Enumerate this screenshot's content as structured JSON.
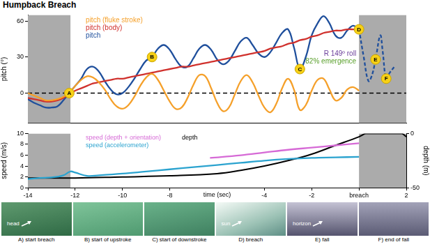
{
  "chart_data": [
    {
      "type": "line",
      "title": "Humpback Breach",
      "ylabel": "pitch (°)",
      "xlim": [
        -14,
        2
      ],
      "ylim": [
        -25,
        65
      ],
      "yticks": [
        0,
        30,
        60
      ],
      "tick_labels": "y",
      "grid": false,
      "shaded_regions": [
        [
          -14,
          -12.2
        ],
        [
          0,
          2
        ]
      ],
      "reference_line": 0,
      "x": [
        -14,
        -13.75,
        -13.5,
        -13.25,
        -13,
        -12.75,
        -12.5,
        -12.25,
        -12,
        -11.75,
        -11.5,
        -11.25,
        -11,
        -10.75,
        -10.5,
        -10.25,
        -10,
        -9.75,
        -9.5,
        -9.25,
        -9,
        -8.75,
        -8.5,
        -8.25,
        -8,
        -7.75,
        -7.5,
        -7.25,
        -7,
        -6.75,
        -6.5,
        -6.25,
        -6,
        -5.75,
        -5.5,
        -5.25,
        -5,
        -4.75,
        -4.5,
        -4.25,
        -4,
        -3.75,
        -3.5,
        -3.25,
        -3,
        -2.75,
        -2.5,
        -2.25,
        -2,
        -1.75,
        -1.5,
        -1.25,
        -1,
        -0.75,
        -0.5,
        -0.25,
        0
      ],
      "series": [
        {
          "name": "pitch (fluke stroke)",
          "color": "#f5a02a",
          "values": [
            0,
            -2,
            -4,
            -6,
            -6,
            -5,
            -3,
            0,
            6,
            11,
            14,
            13,
            9,
            3,
            -5,
            -11,
            -13,
            -10,
            -3,
            6,
            13,
            16,
            11,
            2,
            -7,
            -13,
            -12,
            -4,
            7,
            15,
            14,
            4,
            -8,
            -15,
            -12,
            -1,
            10,
            15,
            9,
            -2,
            -12,
            -16,
            -9,
            4,
            12,
            3,
            -14,
            -10,
            2,
            11,
            12,
            3,
            -6,
            -4,
            3,
            5,
            2
          ]
        },
        {
          "name": "pitch (body)",
          "color": "#d0312d",
          "values": [
            -4,
            -5,
            -6,
            -7,
            -7,
            -6,
            -4,
            -1,
            2,
            4,
            6,
            8,
            9,
            10,
            11,
            12,
            12,
            13,
            14,
            15,
            16,
            17,
            18,
            19,
            20,
            21,
            22,
            22,
            23,
            24,
            25,
            26,
            27,
            28,
            29,
            30,
            31,
            32,
            33,
            34,
            35,
            37,
            38,
            39,
            41,
            42,
            44,
            45,
            47,
            48,
            50,
            51,
            52,
            52,
            53,
            53,
            53
          ]
        },
        {
          "name": "pitch",
          "color": "#1f4f9c",
          "values": [
            -5,
            -8,
            -10,
            -12,
            -12,
            -11,
            -6,
            0,
            6,
            12,
            20,
            22,
            18,
            10,
            3,
            -1,
            0,
            5,
            12,
            20,
            27,
            30,
            37,
            40,
            36,
            28,
            22,
            22,
            29,
            37,
            40,
            36,
            28,
            24,
            27,
            35,
            43,
            46,
            40,
            33,
            30,
            34,
            42,
            50,
            53,
            38,
            20,
            30,
            48,
            58,
            64,
            58,
            48,
            46,
            52,
            56,
            53
          ]
        },
        {
          "name": "pitch",
          "color": "#1f4f9c",
          "line_style": "dashed",
          "x": [
            0,
            0.2,
            0.4,
            0.55,
            0.7,
            0.9,
            1.0,
            1.15,
            1.3,
            1.5
          ],
          "values": [
            53,
            30,
            10,
            15,
            28,
            48,
            35,
            12,
            17,
            22
          ]
        }
      ],
      "markers": [
        {
          "label": "A",
          "x": -12.25,
          "y": 0
        },
        {
          "label": "B",
          "x": -8.75,
          "y": 30
        },
        {
          "label": "C",
          "x": -2.5,
          "y": 20
        },
        {
          "label": "D",
          "x": 0,
          "y": 53
        },
        {
          "label": "E",
          "x": 0.7,
          "y": 28
        },
        {
          "label": "F",
          "x": 1.15,
          "y": 12
        }
      ],
      "annotations": [
        {
          "text": "R 149º roll",
          "color": "#6a3d9a"
        },
        {
          "text": "82% emergence",
          "color": "#5aa02c"
        }
      ]
    },
    {
      "type": "line",
      "xlabel": "time (sec)",
      "ylabel": "speed (m/s)",
      "y2label": "depth (m)",
      "xlim": [
        -14,
        2
      ],
      "xticks": [
        -14,
        -12,
        -10,
        -8,
        -4,
        -2,
        {
          "value": 0,
          "label": "breach"
        },
        2
      ],
      "ylim": [
        0,
        10
      ],
      "yticks": [
        0,
        2,
        4,
        6,
        8,
        10
      ],
      "y2lim": [
        -50,
        0
      ],
      "y2ticks": [
        -50,
        0
      ],
      "grid": false,
      "shaded_regions": [
        [
          -14,
          -12.2
        ],
        [
          0,
          2
        ]
      ],
      "series": [
        {
          "name": "speed (depth + orientation)",
          "color": "#d66ad6",
          "x": [
            -6.3,
            -5,
            -4,
            -3,
            -2,
            -1,
            0
          ],
          "values": [
            5.5,
            6.0,
            6.5,
            7.0,
            7.4,
            7.8,
            8.2
          ]
        },
        {
          "name": "speed (accelerometer)",
          "color": "#2ba3cf",
          "x": [
            -14,
            -13.5,
            -13,
            -12.5,
            -12.2,
            -12,
            -11.5,
            -11,
            -10,
            -9,
            -8,
            -7,
            -6,
            -5,
            -4,
            -3,
            -2,
            -1,
            0
          ],
          "values": [
            1.6,
            1.8,
            1.9,
            2.3,
            3.0,
            2.8,
            2.2,
            2.3,
            2.6,
            3.0,
            3.4,
            3.8,
            4.2,
            4.6,
            5.0,
            5.3,
            5.5,
            5.6,
            5.7
          ]
        },
        {
          "name": "depth",
          "color": "#000000",
          "axis": "y2",
          "x": [
            -14,
            -12,
            -10,
            -8,
            -6,
            -5,
            -4,
            -3,
            -2,
            -1,
            0,
            0.3,
            0.6,
            1,
            1.5,
            1.8,
            2
          ],
          "values": [
            -41,
            -41,
            -40,
            -39,
            -37,
            -34,
            -30,
            -25,
            -19,
            -11,
            -3,
            0,
            0,
            0,
            0,
            0,
            -3
          ]
        }
      ]
    }
  ],
  "photo_panels": [
    {
      "caption": "A) start breach",
      "label": "head"
    },
    {
      "caption": "B) start of upstroke"
    },
    {
      "caption": "C) start of downstroke"
    },
    {
      "caption": "D) breach",
      "label": "sun"
    },
    {
      "caption": "E) fall",
      "label": "horizon"
    },
    {
      "caption": "F) end of fall"
    }
  ]
}
